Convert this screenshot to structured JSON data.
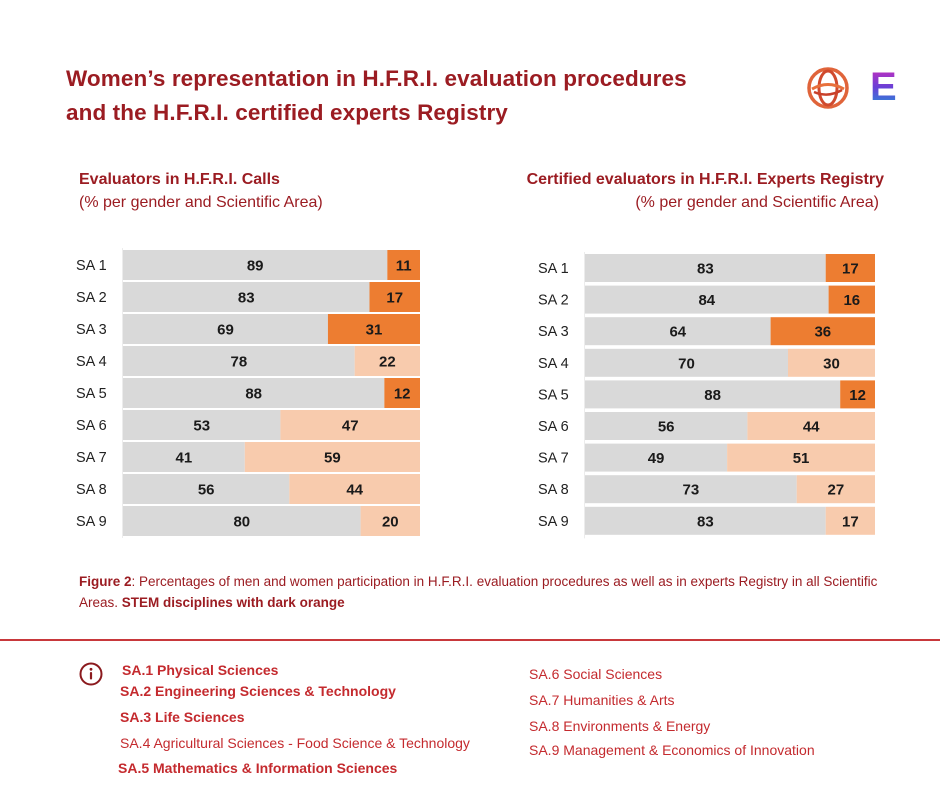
{
  "header": {
    "title_line1": "Women’s representation in H.F.R.I. evaluation procedures",
    "title_line2": "and the H.F.R.I. certified experts Registry",
    "logo_icon": "hfri-globe-logo",
    "logo_letter": "E"
  },
  "colors": {
    "title": "#9b1c22",
    "men_bar": "#d9d9d9",
    "women_stem": "#ed7d31",
    "women_non_stem": "#f8cbad",
    "legend_text": "#c42a2e",
    "divider": "#c8383b"
  },
  "chart_data": [
    {
      "type": "bar",
      "orientation": "horizontal-stacked-100",
      "title": "Evaluators in H.F.R.I. Calls",
      "subtitle": "(% per gender and Scientific Area)",
      "categories": [
        "SA 1",
        "SA 2",
        "SA 3",
        "SA 4",
        "SA 5",
        "SA 6",
        "SA 7",
        "SA 8",
        "SA 9"
      ],
      "stem": [
        true,
        true,
        true,
        false,
        true,
        false,
        false,
        false,
        false
      ],
      "series": [
        {
          "name": "Men",
          "values": [
            89,
            83,
            69,
            78,
            88,
            53,
            41,
            56,
            80
          ]
        },
        {
          "name": "Women",
          "values": [
            11,
            17,
            31,
            22,
            12,
            47,
            59,
            44,
            20
          ]
        }
      ],
      "xlim": [
        0,
        100
      ],
      "grid": false
    },
    {
      "type": "bar",
      "orientation": "horizontal-stacked-100",
      "title": "Certified evaluators in H.F.R.I. Experts Registry",
      "subtitle": "(% per gender and Scientific Area)",
      "categories": [
        "SA 1",
        "SA 2",
        "SA 3",
        "SA 4",
        "SA 5",
        "SA 6",
        "SA 7",
        "SA 8",
        "SA 9"
      ],
      "stem": [
        true,
        true,
        true,
        false,
        true,
        false,
        false,
        false,
        false
      ],
      "series": [
        {
          "name": "Men",
          "values": [
            83,
            84,
            64,
            70,
            88,
            56,
            49,
            73,
            83
          ]
        },
        {
          "name": "Women",
          "values": [
            17,
            16,
            36,
            30,
            12,
            44,
            51,
            27,
            17
          ]
        }
      ],
      "xlim": [
        0,
        100
      ],
      "grid": false
    }
  ],
  "caption": {
    "label": "Figure 2",
    "text": ": Percentages of men and women participation in H.F.R.I. evaluation procedures as well as in experts Registry in all Scientific Areas. ",
    "emphasis": "STEM disciplines with dark orange"
  },
  "legend": {
    "icon": "info-icon",
    "left": [
      {
        "label": "SA.1 Physical Sciences",
        "bold": true
      },
      {
        "label": "SA.2 Engineering Sciences & Technology",
        "bold": true
      },
      {
        "label": "SA.3 Life Sciences",
        "bold": true
      },
      {
        "label": "SA.4 Agricultural Sciences - Food Science & Technology",
        "bold": false
      },
      {
        "label": "SA.5 Mathematics & Information Sciences",
        "bold": true
      }
    ],
    "right": [
      {
        "label": "SA.6 Social Sciences",
        "bold": false
      },
      {
        "label": "SA.7 Humanities & Arts",
        "bold": false
      },
      {
        "label": "SA.8 Environments & Energy",
        "bold": false
      },
      {
        "label": "SA.9 Management & Economics of Innovation",
        "bold": false
      }
    ]
  }
}
